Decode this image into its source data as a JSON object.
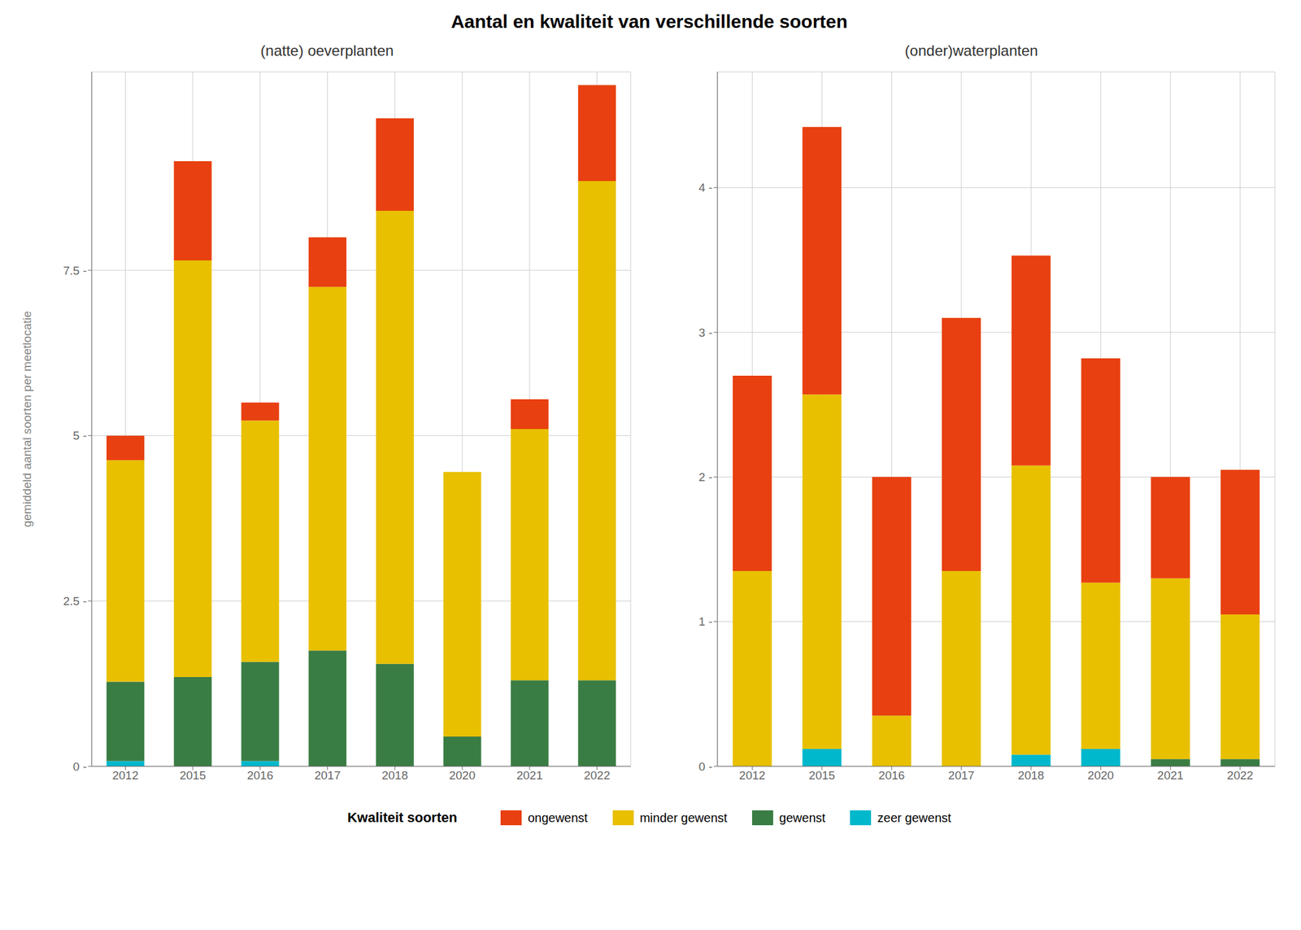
{
  "title": "Aantal en kwaliteit van verschillende soorten",
  "annotations": [
    "Kwaliteit soorten"
  ],
  "legend": "bottom",
  "chart_data": [
    {
      "type": "bar",
      "stacked": true,
      "grid": true,
      "title": "(natte) oeverplanten",
      "ylabel": "gemiddeld aantal soorten per meetlocatie",
      "categories": [
        "2012",
        "2015",
        "2016",
        "2017",
        "2018",
        "2020",
        "2021",
        "2022"
      ],
      "series": [
        {
          "name": "zeer gewenst",
          "color": "#00B8CC",
          "values": [
            0.08,
            0.0,
            0.08,
            0.0,
            0.0,
            0.0,
            0.0,
            0.0
          ]
        },
        {
          "name": "gewenst",
          "color": "#3A7D44",
          "values": [
            1.2,
            1.35,
            1.5,
            1.75,
            1.55,
            0.45,
            1.3,
            1.3
          ]
        },
        {
          "name": "minder gewenst",
          "color": "#E8C000",
          "values": [
            3.35,
            6.3,
            3.65,
            5.5,
            6.85,
            4.0,
            3.8,
            7.55
          ]
        },
        {
          "name": "ongewenst",
          "color": "#E84010",
          "values": [
            0.37,
            1.5,
            0.27,
            0.75,
            1.4,
            0.0,
            0.45,
            1.45
          ]
        }
      ],
      "ylim": [
        0,
        10.5
      ],
      "yticks": [
        {
          "value": 0,
          "label": "0 -"
        },
        {
          "value": 2.5,
          "label": "2.5 -"
        },
        {
          "value": 5,
          "label": "5 -"
        },
        {
          "value": 7.5,
          "label": "7.5 -"
        }
      ]
    },
    {
      "type": "bar",
      "stacked": true,
      "grid": true,
      "title": "(onder)waterplanten",
      "categories": [
        "2012",
        "2015",
        "2016",
        "2017",
        "2018",
        "2020",
        "2021",
        "2022"
      ],
      "series": [
        {
          "name": "zeer gewenst",
          "color": "#00B8CC",
          "values": [
            0.0,
            0.12,
            0.0,
            0.0,
            0.08,
            0.12,
            0.0,
            0.0
          ]
        },
        {
          "name": "gewenst",
          "color": "#3A7D44",
          "values": [
            0.0,
            0.0,
            0.0,
            0.0,
            0.0,
            0.0,
            0.05,
            0.05
          ]
        },
        {
          "name": "minder gewenst",
          "color": "#E8C000",
          "values": [
            1.35,
            2.45,
            0.35,
            1.35,
            2.0,
            1.15,
            1.25,
            1.0
          ]
        },
        {
          "name": "ongewenst",
          "color": "#E84010",
          "values": [
            1.35,
            1.85,
            1.65,
            1.75,
            1.45,
            1.55,
            0.7,
            1.0
          ]
        }
      ],
      "ylim": [
        0,
        4.8
      ],
      "yticks": [
        {
          "value": 0,
          "label": "0 -"
        },
        {
          "value": 1,
          "label": "1 -"
        },
        {
          "value": 2,
          "label": "2 -"
        },
        {
          "value": 3,
          "label": "3 -"
        },
        {
          "value": 4,
          "label": "4 -"
        }
      ]
    }
  ]
}
